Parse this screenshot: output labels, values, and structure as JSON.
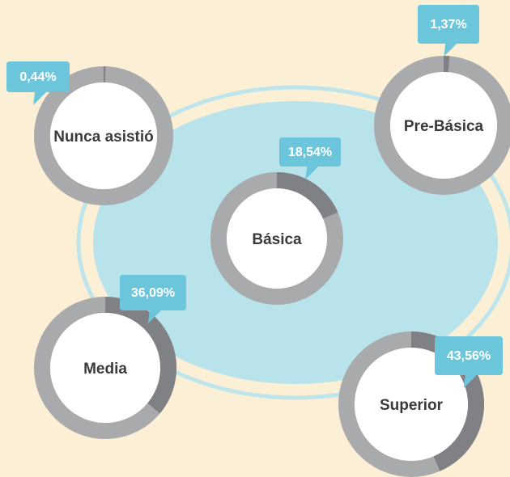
{
  "chart_data": {
    "type": "donut",
    "categories": [
      "Nunca asistió",
      "Pre-Básica",
      "Básica",
      "Media",
      "Superior"
    ],
    "values": [
      0.44,
      1.37,
      18.54,
      36.09,
      43.56
    ],
    "value_labels": [
      "0,44%",
      "1,37%",
      "18,54%",
      "36,09%",
      "43,56%"
    ],
    "color": "#808184",
    "track_color": "#a9aaac",
    "label_color": "#6cc6db"
  }
}
